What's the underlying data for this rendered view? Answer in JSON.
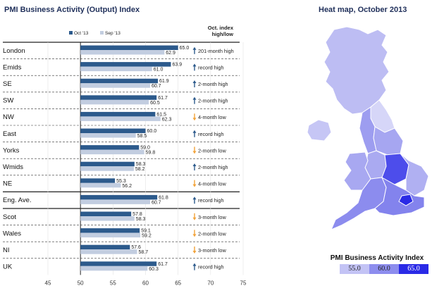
{
  "left_title": "PMI Business Activity (Output) Index",
  "right_title": "Heat map, October 2013",
  "colors": {
    "oct": "#2c5a8c",
    "sep": "#c2cde0",
    "arrow_up": "#2c5a8c",
    "arrow_down": "#f2a33a"
  },
  "chart_data": {
    "type": "bar",
    "orientation": "horizontal",
    "title": "",
    "legend": {
      "position": "top",
      "labels": [
        "Oct '13",
        "Sep '13"
      ]
    },
    "right_column_header": [
      "Oct. index",
      "high/low"
    ],
    "categories": [
      "London",
      "Emids",
      "SE",
      "SW",
      "NW",
      "East",
      "Yorks",
      "Wmids",
      "NE",
      "Eng. Ave.",
      "Scot",
      "Wales",
      "NI",
      "UK"
    ],
    "series": [
      {
        "name": "Oct '13",
        "values": [
          65.0,
          63.9,
          61.9,
          61.7,
          61.5,
          60.0,
          59.0,
          58.3,
          55.3,
          61.8,
          57.8,
          59.1,
          57.6,
          61.7
        ]
      },
      {
        "name": "Sep '13",
        "values": [
          62.9,
          61.0,
          60.7,
          60.5,
          62.3,
          58.5,
          59.8,
          58.2,
          56.2,
          60.7,
          58.3,
          59.2,
          58.7,
          60.3
        ]
      }
    ],
    "value_labels_oct": [
      "65.0",
      "63.9",
      "61.9",
      "61.7",
      "61.5",
      "60.0",
      "59.0",
      "58.3",
      "55.3",
      "61.8",
      "57.8",
      "59.1",
      "57.6",
      "61.7"
    ],
    "value_labels_sep": [
      "62.9",
      "61.0",
      "60.7",
      "60.5",
      "62.3",
      "58.5",
      "59.8",
      "58.2",
      "56.2",
      "60.7",
      "58.3",
      "59.2",
      "58.7",
      "60.3"
    ],
    "annotations": [
      {
        "dir": "up",
        "text": "201-month high"
      },
      {
        "dir": "up",
        "text": "record high"
      },
      {
        "dir": "up",
        "text": "2-month high"
      },
      {
        "dir": "up",
        "text": "2-month high"
      },
      {
        "dir": "down",
        "text": "4-month low"
      },
      {
        "dir": "up",
        "text": "record high"
      },
      {
        "dir": "down",
        "text": "2-month low"
      },
      {
        "dir": "up",
        "text": "2-month high"
      },
      {
        "dir": "down",
        "text": "4-month low"
      },
      {
        "dir": "up",
        "text": "record high"
      },
      {
        "dir": "down",
        "text": "3-month low"
      },
      {
        "dir": "down",
        "text": "2-month low"
      },
      {
        "dir": "down",
        "text": "3-month low"
      },
      {
        "dir": "up",
        "text": "record high"
      }
    ],
    "xlim": [
      45,
      75
    ],
    "xticks": [
      45,
      50,
      55,
      60,
      65,
      70,
      75
    ]
  },
  "map": {
    "legend_title": "PMI Business Activity Index",
    "legend": [
      {
        "label": "55.0",
        "color": "#c3c3f5"
      },
      {
        "label": "60.0",
        "color": "#8d8dee"
      },
      {
        "label": "65.0",
        "color": "#2a2ae6"
      }
    ],
    "region_colors": {
      "Scot": "#bdbdf3",
      "NE": "#d6d6f8",
      "NW": "#9d9df0",
      "Yorks": "#a6a6f1",
      "Wmids": "#aaaaf1",
      "Emids": "#4d4deb",
      "East": "#b0b0f2",
      "Wales": "#a8a8f1",
      "SW": "#8c8cee",
      "SE": "#8383ed",
      "London": "#2a2ae6",
      "NI": "#c6c6f5"
    }
  }
}
